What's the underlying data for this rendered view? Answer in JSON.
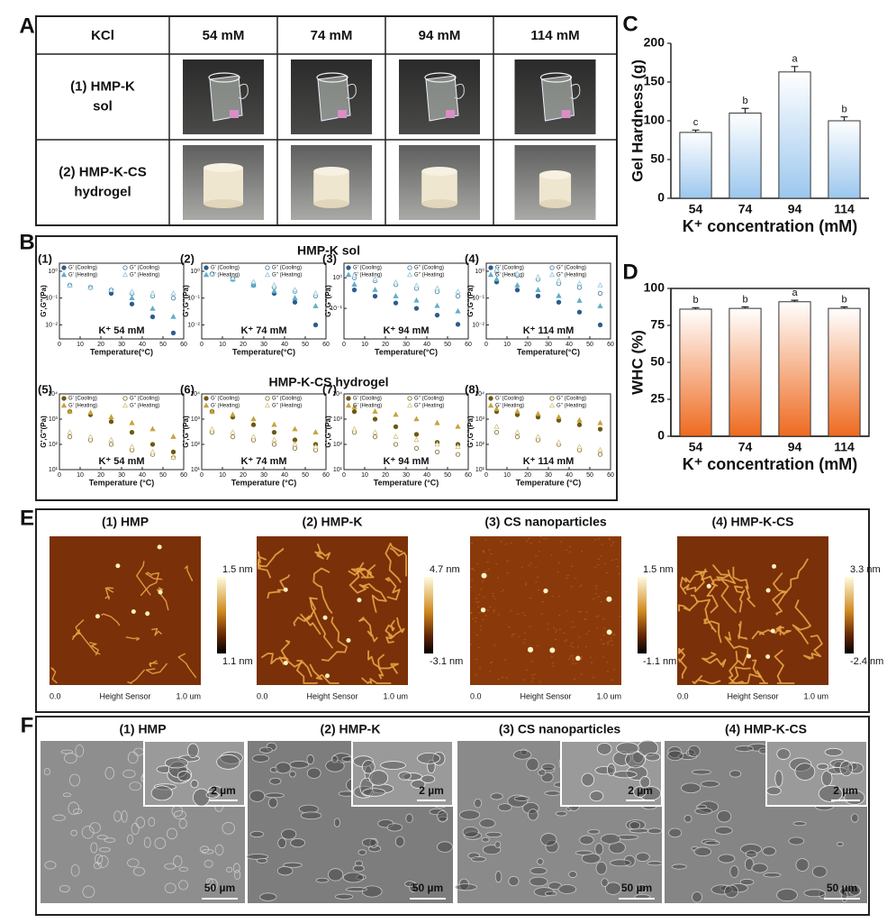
{
  "panel_labels": [
    "A",
    "B",
    "C",
    "D",
    "E",
    "F"
  ],
  "panel_a": {
    "header": [
      "KCl",
      "54 mM",
      "74 mM",
      "94 mM",
      "114 mM"
    ],
    "rows": [
      [
        "(1) HMP-K",
        "sol"
      ],
      [
        "(2) HMP-K-CS",
        "hydrogel"
      ]
    ]
  },
  "panel_b": {
    "group_titles": [
      "HMP-K sol",
      "HMP-K-CS hydrogel"
    ]
  },
  "chart_data": [
    {
      "type": "scatter",
      "label": "(1)",
      "annotation": "K⁺ 54 mM",
      "xlabel": "Temperature(°C)",
      "ylabel": "G',G''(Pa)",
      "x": [
        5,
        15,
        25,
        35,
        45,
        55
      ],
      "xlim": [
        0,
        60
      ],
      "xticks": [
        0,
        10,
        20,
        30,
        40,
        50,
        60
      ],
      "log_y": true,
      "ylim": [
        0.003,
        2
      ],
      "yticks": [
        {
          "value": 0.01,
          "label": "10⁻²"
        },
        {
          "value": 0.1,
          "label": "10⁻¹"
        },
        {
          "value": 1,
          "label": "10⁰"
        }
      ],
      "series": [
        {
          "name": "G' (Cooling)",
          "color": "#2a5d8f",
          "marker": "circle",
          "filled": true,
          "values": [
            0.3,
            0.25,
            0.15,
            0.06,
            0.02,
            0.005
          ]
        },
        {
          "name": "G'' (Cooling)",
          "color": "#4f86b0",
          "marker": "circle",
          "filled": false,
          "values": [
            0.3,
            0.25,
            0.2,
            0.15,
            0.12,
            0.1
          ]
        },
        {
          "name": "G' (Heating)",
          "color": "#62aec6",
          "marker": "triangle",
          "filled": true,
          "values": [
            0.3,
            0.25,
            0.2,
            0.1,
            0.04,
            0.02
          ]
        },
        {
          "name": "G'' (Heating)",
          "color": "#9ccbdc",
          "marker": "triangle",
          "filled": false,
          "values": [
            0.3,
            0.25,
            0.2,
            0.17,
            0.15,
            0.15
          ]
        }
      ]
    },
    {
      "type": "scatter",
      "label": "(2)",
      "annotation": "K⁺ 74 mM",
      "xlabel": "Temperature(°C)",
      "ylabel": "G',G''(Pa)",
      "x": [
        5,
        15,
        25,
        35,
        45,
        55
      ],
      "xlim": [
        0,
        60
      ],
      "xticks": [
        0,
        10,
        20,
        30,
        40,
        50,
        60
      ],
      "log_y": true,
      "ylim": [
        0.003,
        2
      ],
      "yticks": [
        {
          "value": 0.01,
          "label": "10⁻²"
        },
        {
          "value": 0.1,
          "label": "10⁻¹"
        },
        {
          "value": 1,
          "label": "10⁰"
        }
      ],
      "series": [
        {
          "name": "G' (Cooling)",
          "color": "#2a5d8f",
          "marker": "circle",
          "filled": true,
          "values": [
            0.8,
            0.5,
            0.3,
            0.15,
            0.07,
            0.01
          ]
        },
        {
          "name": "G'' (Cooling)",
          "color": "#4f86b0",
          "marker": "circle",
          "filled": false,
          "values": [
            0.8,
            0.55,
            0.35,
            0.25,
            0.18,
            0.12
          ]
        },
        {
          "name": "G' (Heating)",
          "color": "#62aec6",
          "marker": "triangle",
          "filled": true,
          "values": [
            0.8,
            0.5,
            0.3,
            0.18,
            0.1,
            0.05
          ]
        },
        {
          "name": "G'' (Heating)",
          "color": "#9ccbdc",
          "marker": "triangle",
          "filled": false,
          "values": [
            0.8,
            0.55,
            0.4,
            0.3,
            0.2,
            0.15
          ]
        }
      ]
    },
    {
      "type": "scatter",
      "label": "(3)",
      "annotation": "K⁺ 94 mM",
      "xlabel": "Temperature(°C)",
      "ylabel": "G',G''(Pa)",
      "x": [
        5,
        15,
        25,
        35,
        45,
        55
      ],
      "xlim": [
        0,
        60
      ],
      "xticks": [
        0,
        10,
        20,
        30,
        40,
        50,
        60
      ],
      "log_y": true,
      "ylim": [
        0.01,
        3
      ],
      "yticks": [
        {
          "value": 0.1,
          "label": "10⁻¹"
        },
        {
          "value": 1,
          "label": "10⁰"
        }
      ],
      "series": [
        {
          "name": "G' (Cooling)",
          "color": "#2a5d8f",
          "marker": "circle",
          "filled": true,
          "values": [
            0.4,
            0.25,
            0.15,
            0.1,
            0.06,
            0.03
          ]
        },
        {
          "name": "G'' (Cooling)",
          "color": "#4f86b0",
          "marker": "circle",
          "filled": false,
          "values": [
            1,
            0.8,
            0.6,
            0.45,
            0.35,
            0.25
          ]
        },
        {
          "name": "G' (Heating)",
          "color": "#62aec6",
          "marker": "triangle",
          "filled": true,
          "values": [
            0.6,
            0.4,
            0.25,
            0.18,
            0.12,
            0.08
          ]
        },
        {
          "name": "G'' (Heating)",
          "color": "#9ccbdc",
          "marker": "triangle",
          "filled": false,
          "values": [
            1.2,
            0.9,
            0.7,
            0.55,
            0.45,
            0.35
          ]
        }
      ]
    },
    {
      "type": "scatter",
      "label": "(4)",
      "annotation": "K⁺ 114 mM",
      "xlabel": "Temperature(°C)",
      "ylabel": "G',G''(Pa)",
      "x": [
        5,
        15,
        25,
        35,
        45,
        55
      ],
      "xlim": [
        0,
        60
      ],
      "xticks": [
        0,
        10,
        20,
        30,
        40,
        50,
        60
      ],
      "log_y": true,
      "ylim": [
        0.003,
        2
      ],
      "yticks": [
        {
          "value": 0.01,
          "label": "10⁻²"
        },
        {
          "value": 0.1,
          "label": "10⁻¹"
        },
        {
          "value": 1,
          "label": "10⁰"
        }
      ],
      "series": [
        {
          "name": "G' (Cooling)",
          "color": "#2a5d8f",
          "marker": "circle",
          "filled": true,
          "values": [
            0.4,
            0.2,
            0.12,
            0.07,
            0.03,
            0.01
          ]
        },
        {
          "name": "G'' (Cooling)",
          "color": "#4f86b0",
          "marker": "circle",
          "filled": false,
          "values": [
            1,
            0.7,
            0.5,
            0.35,
            0.25,
            0.15
          ]
        },
        {
          "name": "G' (Heating)",
          "color": "#62aec6",
          "marker": "triangle",
          "filled": true,
          "values": [
            0.5,
            0.3,
            0.2,
            0.12,
            0.08,
            0.05
          ]
        },
        {
          "name": "G'' (Heating)",
          "color": "#9ccbdc",
          "marker": "triangle",
          "filled": false,
          "values": [
            1.1,
            0.8,
            0.6,
            0.45,
            0.35,
            0.3
          ]
        }
      ]
    },
    {
      "type": "scatter",
      "label": "(5)",
      "annotation": "K⁺ 54 mM",
      "xlabel": "Temperature (°C)",
      "ylabel": "G',G''(Pa)",
      "x": [
        5,
        15,
        25,
        35,
        45,
        55
      ],
      "xlim": [
        0,
        60
      ],
      "xticks": [
        0,
        10,
        20,
        30,
        40,
        50,
        60
      ],
      "log_y": true,
      "ylim": [
        10,
        10000
      ],
      "yticks": [
        {
          "value": 10,
          "label": "10¹"
        },
        {
          "value": 100,
          "label": "10²"
        },
        {
          "value": 1000,
          "label": "10³"
        },
        {
          "value": 10000,
          "label": "10⁴"
        }
      ],
      "series": [
        {
          "name": "G' (Cooling)",
          "color": "#6b5a14",
          "marker": "circle",
          "filled": true,
          "values": [
            2000,
            1500,
            800,
            300,
            100,
            50
          ]
        },
        {
          "name": "G'' (Cooling)",
          "color": "#8a7a3a",
          "marker": "circle",
          "filled": false,
          "values": [
            200,
            150,
            100,
            60,
            40,
            30
          ]
        },
        {
          "name": "G' (Heating)",
          "color": "#c8a23c",
          "marker": "triangle",
          "filled": true,
          "values": [
            2000,
            1800,
            1200,
            700,
            400,
            200
          ]
        },
        {
          "name": "G'' (Heating)",
          "color": "#d9c58a",
          "marker": "triangle",
          "filled": false,
          "values": [
            300,
            200,
            150,
            80,
            50,
            30
          ]
        }
      ]
    },
    {
      "type": "scatter",
      "label": "(6)",
      "annotation": "K⁺ 74 mM",
      "xlabel": "Temperature (°C)",
      "ylabel": "G',G''(Pa)",
      "x": [
        5,
        15,
        25,
        35,
        45,
        55
      ],
      "xlim": [
        0,
        60
      ],
      "xticks": [
        0,
        10,
        20,
        30,
        40,
        50,
        60
      ],
      "log_y": true,
      "ylim": [
        10,
        10000
      ],
      "yticks": [
        {
          "value": 10,
          "label": "10¹"
        },
        {
          "value": 100,
          "label": "10²"
        },
        {
          "value": 1000,
          "label": "10³"
        },
        {
          "value": 10000,
          "label": "10⁴"
        }
      ],
      "series": [
        {
          "name": "G' (Cooling)",
          "color": "#6b5a14",
          "marker": "circle",
          "filled": true,
          "values": [
            2000,
            1200,
            600,
            300,
            150,
            100
          ]
        },
        {
          "name": "G'' (Cooling)",
          "color": "#8a7a3a",
          "marker": "circle",
          "filled": false,
          "values": [
            300,
            200,
            150,
            100,
            70,
            60
          ]
        },
        {
          "name": "G' (Heating)",
          "color": "#c8a23c",
          "marker": "triangle",
          "filled": true,
          "values": [
            2000,
            1500,
            1000,
            600,
            400,
            300
          ]
        },
        {
          "name": "G'' (Heating)",
          "color": "#d9c58a",
          "marker": "triangle",
          "filled": false,
          "values": [
            400,
            300,
            200,
            150,
            100,
            80
          ]
        }
      ]
    },
    {
      "type": "scatter",
      "label": "(7)",
      "annotation": "K⁺ 94 mM",
      "xlabel": "Temperature (°C)",
      "ylabel": "G',G''(Pa)",
      "x": [
        5,
        15,
        25,
        35,
        45,
        55
      ],
      "xlim": [
        0,
        60
      ],
      "xticks": [
        0,
        10,
        20,
        30,
        40,
        50,
        60
      ],
      "log_y": true,
      "ylim": [
        10,
        10000
      ],
      "yticks": [
        {
          "value": 10,
          "label": "10¹"
        },
        {
          "value": 100,
          "label": "10²"
        },
        {
          "value": 1000,
          "label": "10³"
        },
        {
          "value": 10000,
          "label": "10⁴"
        }
      ],
      "series": [
        {
          "name": "G' (Cooling)",
          "color": "#6b5a14",
          "marker": "circle",
          "filled": true,
          "values": [
            2000,
            1000,
            500,
            250,
            120,
            100
          ]
        },
        {
          "name": "G'' (Cooling)",
          "color": "#8a7a3a",
          "marker": "circle",
          "filled": false,
          "values": [
            300,
            200,
            100,
            70,
            50,
            40
          ]
        },
        {
          "name": "G' (Heating)",
          "color": "#c8a23c",
          "marker": "triangle",
          "filled": true,
          "values": [
            3000,
            2000,
            1500,
            1000,
            700,
            500
          ]
        },
        {
          "name": "G'' (Heating)",
          "color": "#d9c58a",
          "marker": "triangle",
          "filled": false,
          "values": [
            400,
            300,
            200,
            150,
            100,
            80
          ]
        }
      ]
    },
    {
      "type": "scatter",
      "label": "(8)",
      "annotation": "K⁺ 114 mM",
      "xlabel": "Temperature (°C)",
      "ylabel": "G',G''(Pa)",
      "x": [
        5,
        15,
        25,
        35,
        45,
        55
      ],
      "xlim": [
        0,
        60
      ],
      "xticks": [
        0,
        10,
        20,
        30,
        40,
        50,
        60
      ],
      "log_y": true,
      "ylim": [
        10,
        10000
      ],
      "yticks": [
        {
          "value": 10,
          "label": "10¹"
        },
        {
          "value": 100,
          "label": "10²"
        },
        {
          "value": 1000,
          "label": "10³"
        },
        {
          "value": 10000,
          "label": "10⁴"
        }
      ],
      "series": [
        {
          "name": "G' (Cooling)",
          "color": "#6b5a14",
          "marker": "circle",
          "filled": true,
          "values": [
            2000,
            1500,
            1200,
            900,
            600,
            400
          ]
        },
        {
          "name": "G'' (Cooling)",
          "color": "#8a7a3a",
          "marker": "circle",
          "filled": false,
          "values": [
            300,
            200,
            150,
            100,
            60,
            40
          ]
        },
        {
          "name": "G' (Heating)",
          "color": "#c8a23c",
          "marker": "triangle",
          "filled": true,
          "values": [
            2500,
            2000,
            1600,
            1200,
            900,
            700
          ]
        },
        {
          "name": "G'' (Heating)",
          "color": "#d9c58a",
          "marker": "triangle",
          "filled": false,
          "values": [
            500,
            300,
            200,
            120,
            80,
            60
          ]
        }
      ]
    },
    {
      "type": "bar",
      "ylabel": "Gel Hardness (g)",
      "xlabel": "K⁺ concentration (mM)",
      "categories": [
        "54",
        "74",
        "94",
        "114"
      ],
      "values": [
        85,
        110,
        163,
        100
      ],
      "errors": [
        3,
        6,
        7,
        5
      ],
      "letters": [
        "c",
        "b",
        "a",
        "b"
      ],
      "ylim": [
        0,
        200
      ],
      "yticks": [
        0,
        50,
        100,
        150,
        200
      ],
      "color": "#9cc7ee",
      "frame": false
    },
    {
      "type": "bar",
      "ylabel": "WHC (%)",
      "xlabel": "K⁺ concentration (mM)",
      "categories": [
        "54",
        "74",
        "94",
        "114"
      ],
      "values": [
        86,
        86.5,
        91,
        86.5
      ],
      "errors": [
        1,
        1,
        1,
        1
      ],
      "letters": [
        "b",
        "b",
        "a",
        "b"
      ],
      "ylim": [
        0,
        100
      ],
      "yticks": [
        0,
        25,
        50,
        75,
        100
      ],
      "color": "#ee6a1f",
      "frame": true
    }
  ],
  "panel_e": {
    "images": [
      {
        "title": "(1) HMP",
        "scale_max": "1.5 nm",
        "scale_min": "1.1 nm",
        "axis": [
          "0.0",
          "Height Sensor",
          "1.0 um"
        ]
      },
      {
        "title": "(2) HMP-K",
        "scale_max": "4.7 nm",
        "scale_min": "-3.1 nm",
        "axis": [
          "0.0",
          "Height Sensor",
          "1.0 um"
        ]
      },
      {
        "title": "(3) CS nanoparticles",
        "scale_max": "1.5 nm",
        "scale_min": "-1.1 nm",
        "axis": [
          "0.0",
          "Height Sensor",
          "1.0 um"
        ]
      },
      {
        "title": "(4) HMP-K-CS",
        "scale_max": "3.3 nm",
        "scale_min": "-2.4 nm",
        "axis": [
          "0.0",
          "Height Sensor",
          "1.0 um"
        ]
      }
    ]
  },
  "panel_f": {
    "images": [
      {
        "title": "(1) HMP",
        "inset_scale": "2 µm",
        "scale": "50 µm"
      },
      {
        "title": "(2) HMP-K",
        "inset_scale": "2 µm",
        "scale": "50 µm"
      },
      {
        "title": "(3) CS nanoparticles",
        "inset_scale": "2 µm",
        "scale": "50 µm"
      },
      {
        "title": "(4) HMP-K-CS",
        "inset_scale": "2 µm",
        "scale": "50 µm"
      }
    ]
  }
}
